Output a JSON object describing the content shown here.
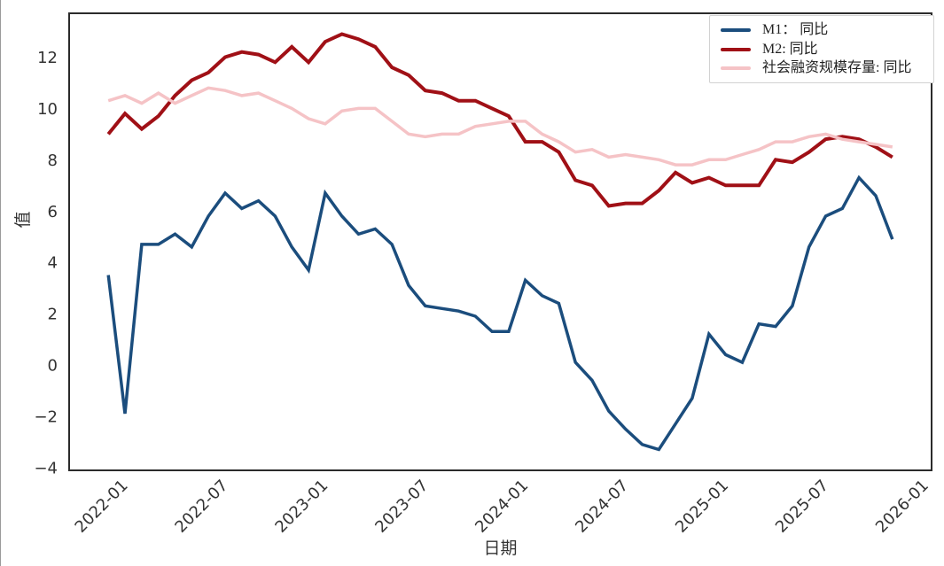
{
  "chart_data": {
    "type": "line",
    "title": "",
    "xlabel": "日期",
    "ylabel": "值",
    "grid": false,
    "legend_position": "upper right",
    "ylim": [
      -4.11,
      13.71
    ],
    "y_ticks": [
      -4,
      -2,
      0,
      2,
      4,
      6,
      8,
      10,
      12
    ],
    "x_tick_labels": [
      "2022-01",
      "2022-07",
      "2023-01",
      "2023-07",
      "2024-01",
      "2024-07",
      "2025-01",
      "2025-07",
      "2026-01"
    ],
    "x": [
      "2021-12",
      "2022-01",
      "2022-02",
      "2022-03",
      "2022-04",
      "2022-05",
      "2022-06",
      "2022-07",
      "2022-08",
      "2022-09",
      "2022-10",
      "2022-11",
      "2022-12",
      "2023-01",
      "2023-02",
      "2023-03",
      "2023-04",
      "2023-05",
      "2023-06",
      "2023-07",
      "2023-08",
      "2023-09",
      "2023-10",
      "2023-11",
      "2023-12",
      "2024-01",
      "2024-02",
      "2024-03",
      "2024-04",
      "2024-05",
      "2024-06",
      "2024-07",
      "2024-08",
      "2024-09",
      "2024-10",
      "2024-11",
      "2024-12",
      "2025-01",
      "2025-02",
      "2025-03",
      "2025-04",
      "2025-05",
      "2025-06",
      "2025-07",
      "2025-08",
      "2025-09",
      "2025-10",
      "2025-11"
    ],
    "series": [
      {
        "name": "M1： 同比",
        "color": "#1b4d7d",
        "line_width": 3.5,
        "values": [
          3.5,
          -1.9,
          4.7,
          4.7,
          5.1,
          4.6,
          5.8,
          6.7,
          6.1,
          6.4,
          5.8,
          4.6,
          3.7,
          6.7,
          5.8,
          5.1,
          5.3,
          4.7,
          3.1,
          2.3,
          2.2,
          2.1,
          1.9,
          1.3,
          1.3,
          3.3,
          2.7,
          2.4,
          0.1,
          -0.6,
          -1.8,
          -2.5,
          -3.1,
          -3.3,
          -2.3,
          -1.3,
          1.2,
          0.4,
          0.1,
          1.6,
          1.5,
          2.3,
          4.6,
          5.8,
          6.1,
          7.3,
          6.6,
          4.9
        ]
      },
      {
        "name": "M2: 同比",
        "color": "#a01016",
        "line_width": 4,
        "values": [
          9.0,
          9.8,
          9.2,
          9.7,
          10.5,
          11.1,
          11.4,
          12.0,
          12.2,
          12.1,
          11.8,
          12.4,
          11.8,
          12.6,
          12.9,
          12.7,
          12.4,
          11.6,
          11.3,
          10.7,
          10.6,
          10.3,
          10.3,
          10.0,
          9.7,
          8.7,
          8.7,
          8.3,
          7.2,
          7.0,
          6.2,
          6.3,
          6.3,
          6.8,
          7.5,
          7.1,
          7.3,
          7.0,
          7.0,
          7.0,
          8.0,
          7.9,
          8.3,
          8.8,
          8.9,
          8.8,
          8.5,
          8.1
        ]
      },
      {
        "name": "社会融资规模存量: 同比",
        "color": "#f5c3c6",
        "line_width": 3.5,
        "values": [
          10.3,
          10.5,
          10.2,
          10.6,
          10.2,
          10.5,
          10.8,
          10.7,
          10.5,
          10.6,
          10.3,
          10.0,
          9.6,
          9.4,
          9.9,
          10.0,
          10.0,
          9.5,
          9.0,
          8.9,
          9.0,
          9.0,
          9.3,
          9.4,
          9.5,
          9.5,
          9.0,
          8.7,
          8.3,
          8.4,
          8.1,
          8.2,
          8.1,
          8.0,
          7.8,
          7.8,
          8.0,
          8.0,
          8.2,
          8.4,
          8.7,
          8.7,
          8.9,
          9.0,
          8.8,
          8.7,
          8.6,
          8.5
        ]
      }
    ],
    "axis_color": "#2b2b2b",
    "tick_label_color": "#3a3a3a"
  }
}
